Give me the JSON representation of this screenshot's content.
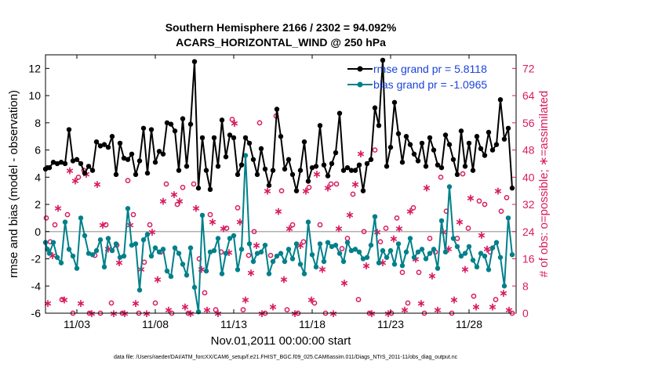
{
  "chart_data": {
    "type": "line",
    "title_line1": "Southern Hemisphere 2166 / 2302 = 94.092%",
    "title_line2": "ACARS_HORIZONTAL_WIND @ 250 hPa",
    "xlabel": "Nov.01,2011 00:00:00 start",
    "ylabel_left": "rmse and bias (model - observation)",
    "ylabel_right": "# of obs: o=possible; ∗=assimilated",
    "footnote": "data file: /Users/raeder/DAI/ATM_forcXX/CAM6_setup/f.e21.FHIST_BGC.f09_025.CAM6assim.011/Diags_NTrS_2011-11/obs_diag_output.nc",
    "xlim": [
      1,
      31
    ],
    "ylim_left": [
      -6,
      13
    ],
    "ylim_right": [
      0,
      76
    ],
    "x_ticks": [
      3,
      8,
      13,
      18,
      23,
      28
    ],
    "x_tick_labels": [
      "11/03",
      "11/08",
      "11/13",
      "11/18",
      "11/23",
      "11/28"
    ],
    "y_ticks_left": [
      -6,
      -4,
      -2,
      0,
      2,
      4,
      6,
      8,
      10,
      12
    ],
    "y_tick_labels_left": [
      "-6",
      "-4",
      "-2",
      "0",
      "2",
      "4",
      "6",
      "8",
      "10",
      "12"
    ],
    "y_ticks_right": [
      0,
      8,
      16,
      24,
      32,
      40,
      48,
      56,
      64,
      72
    ],
    "y_tick_labels_right": [
      "0",
      "8",
      "16",
      "24",
      "32",
      "40",
      "48",
      "56",
      "64",
      "72"
    ],
    "legend": {
      "placement": "top-right",
      "entries": [
        "rmse grand pr = 5.8118",
        "bias grand pr = -1.0965"
      ]
    },
    "colors": {
      "rmse": "#000000",
      "bias": "#00808a",
      "obs": "#d81b60",
      "zero": "#b0b0b0"
    },
    "series": [
      {
        "name": "rmse",
        "x": [
          1.0,
          1.12,
          1.25,
          1.5,
          1.75,
          2.0,
          2.25,
          2.5,
          2.75,
          3.0,
          3.25,
          3.5,
          3.75,
          4.0,
          4.25,
          4.5,
          4.75,
          5.0,
          5.25,
          5.5,
          5.75,
          6.0,
          6.25,
          6.5,
          6.75,
          7.0,
          7.25,
          7.5,
          7.75,
          8.0,
          8.25,
          8.5,
          8.75,
          9.0,
          9.25,
          9.5,
          9.75,
          10.0,
          10.25,
          10.5,
          10.75,
          11.0,
          11.25,
          11.5,
          11.75,
          12.0,
          12.25,
          12.5,
          12.75,
          13.0,
          13.25,
          13.5,
          13.75,
          14.0,
          14.25,
          14.5,
          14.75,
          15.0,
          15.25,
          15.5,
          15.75,
          16.0,
          16.25,
          16.5,
          16.75,
          17.0,
          17.25,
          17.5,
          17.75,
          18.0,
          18.25,
          18.5,
          18.75,
          19.0,
          19.25,
          19.5,
          19.75,
          20.0,
          20.25,
          20.5,
          20.75,
          21.0,
          21.25,
          21.5,
          21.75,
          22.0,
          22.25,
          22.5,
          22.75,
          23.0,
          23.25,
          23.5,
          23.75,
          24.0,
          24.25,
          24.5,
          24.75,
          25.0,
          25.25,
          25.5,
          25.75,
          26.0,
          26.25,
          26.5,
          26.75,
          27.0,
          27.25,
          27.5,
          27.75,
          28.0,
          28.25,
          28.5,
          28.75,
          29.0,
          29.25,
          29.5,
          29.75,
          30.0,
          30.25,
          30.5,
          30.75
        ],
        "values": [
          4.6,
          4.7,
          4.7,
          5.1,
          5.0,
          5.1,
          5.0,
          7.5,
          5.2,
          5.3,
          5.0,
          4.3,
          4.8,
          4.5,
          6.6,
          6.3,
          6.4,
          6.2,
          7.0,
          4.2,
          6.5,
          5.4,
          5.3,
          5.7,
          4.2,
          5.2,
          7.6,
          4.3,
          7.5,
          5.1,
          5.9,
          5.7,
          8.0,
          7.9,
          7.4,
          4.5,
          8.3,
          4.8,
          7.9,
          12.5,
          3.2,
          6.9,
          4.5,
          3.1,
          6.9,
          4.8,
          8.2,
          5.5,
          7.1,
          6.9,
          4.2,
          4.9,
          6.9,
          6.5,
          5.3,
          4.2,
          6.1,
          4.6,
          3.4,
          4.5,
          9.0,
          7.0,
          4.6,
          5.3,
          4.2,
          3.0,
          4.5,
          6.6,
          3.7,
          4.7,
          4.8,
          7.8,
          4.9,
          4.1,
          5.0,
          5.8,
          8.7,
          4.5,
          4.7,
          4.5,
          4.5,
          4.9,
          3.0,
          5.0,
          5.3,
          9.1,
          7.8,
          12.6,
          4.8,
          6.2,
          9.5,
          7.2,
          5.1,
          7.0,
          6.4,
          5.7,
          5.2,
          6.5,
          4.8,
          6.9,
          6.0,
          4.9,
          4.7,
          7.1,
          6.4,
          5.3,
          4.2,
          7.4,
          4.8,
          6.5,
          4.5,
          7.0,
          6.1,
          5.6,
          7.3,
          6.0,
          6.4,
          9.7,
          6.8,
          7.6,
          3.2
        ]
      },
      {
        "name": "bias",
        "x": [
          1.0,
          1.12,
          1.25,
          1.5,
          1.75,
          2.0,
          2.25,
          2.5,
          2.75,
          3.0,
          3.25,
          3.5,
          3.75,
          4.0,
          4.25,
          4.5,
          4.75,
          5.0,
          5.25,
          5.5,
          5.75,
          6.0,
          6.25,
          6.5,
          6.75,
          7.0,
          7.25,
          7.5,
          7.75,
          8.0,
          8.25,
          8.5,
          8.75,
          9.0,
          9.25,
          9.5,
          9.75,
          10.0,
          10.25,
          10.5,
          10.75,
          11.0,
          11.25,
          11.5,
          11.75,
          12.0,
          12.25,
          12.5,
          12.75,
          13.0,
          13.25,
          13.5,
          13.75,
          14.0,
          14.25,
          14.5,
          14.75,
          15.0,
          15.25,
          15.5,
          15.75,
          16.0,
          16.25,
          16.5,
          16.75,
          17.0,
          17.25,
          17.5,
          17.75,
          18.0,
          18.25,
          18.5,
          18.75,
          19.0,
          19.25,
          19.5,
          19.75,
          20.0,
          20.25,
          20.5,
          20.75,
          21.0,
          21.25,
          21.5,
          21.75,
          22.0,
          22.25,
          22.5,
          22.75,
          23.0,
          23.25,
          23.5,
          23.75,
          24.0,
          24.25,
          24.5,
          24.75,
          25.0,
          25.25,
          25.5,
          25.75,
          26.0,
          26.25,
          26.5,
          26.75,
          27.0,
          27.25,
          27.5,
          27.75,
          28.0,
          28.25,
          28.5,
          28.75,
          29.0,
          29.25,
          29.5,
          29.75,
          30.0,
          30.25,
          30.5,
          30.75
        ],
        "values": [
          -0.8,
          -1.3,
          -1.6,
          -0.8,
          -1.9,
          -2.3,
          0.7,
          -1.3,
          -1.8,
          -2.7,
          1.0,
          -0.3,
          -1.6,
          -1.7,
          -1.4,
          -0.6,
          -2.6,
          -0.5,
          -1.4,
          -0.9,
          -1.9,
          -1.8,
          1.7,
          -1.0,
          -0.9,
          -4.3,
          -0.6,
          -0.2,
          -1.8,
          -1.2,
          -1.5,
          -1.3,
          -2.9,
          -3.3,
          -1.2,
          -1.6,
          -2.4,
          -3.2,
          -1.2,
          -4.1,
          -5.9,
          1.2,
          -2.9,
          -1.5,
          -1.4,
          -0.5,
          -3.1,
          -1.6,
          -0.5,
          -0.3,
          -2.8,
          -1.3,
          5.6,
          -0.9,
          -2.2,
          -1.6,
          -1.5,
          -1.0,
          -3.1,
          -2.2,
          -1.8,
          -1.6,
          -2.2,
          -1.3,
          -2.0,
          -0.9,
          -2.4,
          -3.1,
          0.7,
          -1.7,
          -2.6,
          -0.9,
          -2.2,
          -0.8,
          -1.1,
          -1.0,
          -1.6,
          -2.2,
          -0.8,
          -1.4,
          -1.3,
          -1.5,
          -2.0,
          -1.9,
          -1.0,
          1.1,
          -2.3,
          -1.4,
          -1.9,
          -1.4,
          -2.4,
          -0.9,
          -2.5,
          -1.5,
          -0.5,
          -1.9,
          -1.5,
          -1.3,
          -2.0,
          -1.6,
          -1.3,
          -2.7,
          0.8,
          -1.5,
          3.3,
          -0.5,
          -1.1,
          -1.8,
          -1.6,
          -1.1,
          -2.1,
          -2.6,
          -1.6,
          -1.8,
          -2.8,
          -1.2,
          -0.8,
          -1.9,
          -4.0,
          1.0,
          -1.7
        ]
      },
      {
        "name": "# obs possible",
        "x": [
          1.05,
          1.3,
          1.6,
          2.05,
          2.4,
          2.75,
          3.1,
          3.45,
          3.8,
          4.15,
          4.5,
          4.85,
          5.2,
          5.55,
          5.9,
          6.25,
          6.6,
          6.95,
          7.3,
          7.65,
          8.0,
          8.35,
          8.7,
          9.05,
          9.4,
          9.75,
          10.1,
          10.45,
          10.8,
          11.15,
          11.5,
          11.85,
          12.2,
          12.55,
          12.9,
          13.25,
          13.6,
          13.95,
          14.3,
          14.65,
          15.0,
          15.35,
          15.7,
          16.05,
          16.4,
          16.75,
          17.1,
          17.45,
          17.8,
          18.15,
          18.5,
          18.85,
          19.2,
          19.55,
          19.9,
          20.25,
          20.6,
          20.95,
          21.3,
          21.65,
          22.0,
          22.35,
          22.7,
          23.05,
          23.4,
          23.75,
          24.1,
          24.45,
          24.8,
          25.15,
          25.5,
          25.85,
          26.2,
          26.55,
          26.9,
          27.25,
          27.6,
          27.95,
          28.3,
          28.65,
          29.0,
          29.35,
          29.7,
          30.05,
          30.4,
          30.75
        ],
        "values": [
          28,
          21,
          26,
          4,
          29,
          0,
          40,
          42,
          0,
          17,
          0,
          26,
          3,
          20,
          0,
          39,
          29,
          0,
          15,
          26,
          3,
          18,
          38,
          0,
          32,
          37,
          0,
          38,
          16,
          6,
          29,
          1,
          18,
          25,
          57,
          31,
          1,
          17,
          24,
          56,
          0,
          17,
          58,
          36,
          1,
          26,
          0,
          21,
          37,
          3,
          26,
          0,
          38,
          38,
          19,
          22,
          35,
          4,
          24,
          0,
          48,
          21,
          25,
          0,
          28,
          12,
          3,
          31,
          12,
          0,
          22,
          18,
          40,
          30,
          0,
          22,
          41,
          25,
          5,
          33,
          32,
          18,
          4,
          30,
          34,
          0
        ]
      },
      {
        "name": "# obs assimilated",
        "x": [
          1.15,
          1.45,
          1.8,
          2.2,
          2.55,
          2.9,
          3.25,
          3.6,
          3.95,
          4.3,
          4.65,
          5.0,
          5.35,
          5.7,
          6.05,
          6.4,
          6.75,
          7.1,
          7.45,
          7.8,
          8.15,
          8.5,
          8.85,
          9.2,
          9.55,
          9.9,
          10.25,
          10.6,
          10.95,
          11.3,
          11.65,
          12.0,
          12.35,
          12.7,
          13.05,
          13.4,
          13.75,
          14.1,
          14.45,
          14.8,
          15.15,
          15.5,
          15.85,
          16.2,
          16.55,
          16.9,
          17.25,
          17.6,
          17.95,
          18.3,
          18.65,
          19.0,
          19.35,
          19.7,
          20.05,
          20.4,
          20.75,
          21.1,
          21.45,
          21.8,
          22.15,
          22.5,
          22.85,
          23.2,
          23.55,
          23.9,
          24.25,
          24.6,
          24.95,
          25.3,
          25.65,
          26.0,
          26.35,
          26.7,
          27.05,
          27.4,
          27.75,
          28.1,
          28.45,
          28.8,
          29.15,
          29.5,
          29.85,
          30.2,
          30.55
        ],
        "values": [
          3,
          17,
          31,
          4,
          42,
          39,
          3,
          41,
          0,
          38,
          26,
          19,
          0,
          15,
          0,
          26,
          3,
          13,
          0,
          24,
          10,
          33,
          1,
          35,
          33,
          2,
          0,
          31,
          13,
          1,
          27,
          0,
          25,
          18,
          56,
          27,
          4,
          12,
          20,
          0,
          36,
          2,
          30,
          10,
          25,
          0,
          20,
          36,
          4,
          41,
          13,
          37,
          0,
          25,
          9,
          29,
          38,
          47,
          14,
          0,
          24,
          15,
          0,
          22,
          25,
          1,
          30,
          16,
          3,
          37,
          11,
          1,
          24,
          19,
          4,
          27,
          13,
          34,
          2,
          23,
          19,
          2,
          36,
          6,
          1
        ]
      }
    ]
  }
}
